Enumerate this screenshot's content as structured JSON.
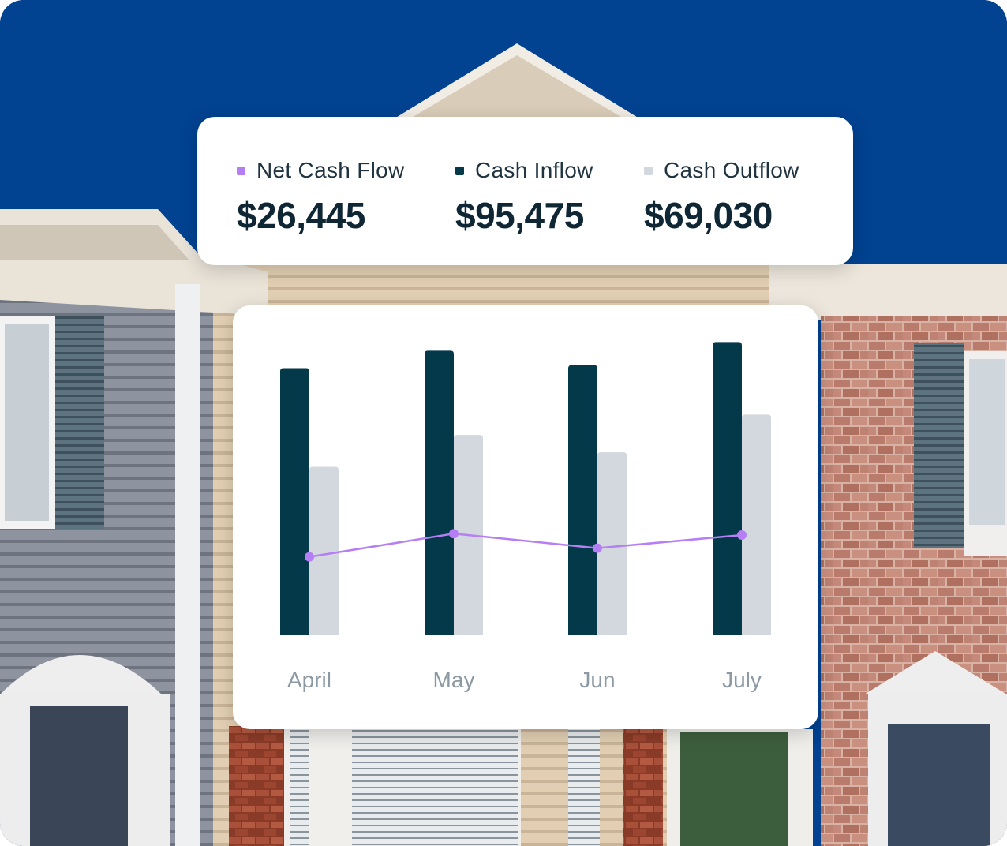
{
  "summary": {
    "net": {
      "label": "Net Cash Flow",
      "value": "$26,445",
      "color": "#b57ef5"
    },
    "inflow": {
      "label": "Cash Inflow",
      "value": "$95,475",
      "color": "#04394a"
    },
    "outflow": {
      "label": "Cash Outflow",
      "value": "$69,030",
      "color": "#d3d8de"
    }
  },
  "chart_data": {
    "type": "bar",
    "categories": [
      "April",
      "May",
      "Jun",
      "July"
    ],
    "ylim": [
      0,
      100
    ],
    "grid": false,
    "series": [
      {
        "name": "Cash Inflow",
        "type": "bar",
        "color": "#04394a",
        "values": [
          92,
          98,
          93,
          101
        ]
      },
      {
        "name": "Cash Outflow",
        "type": "bar",
        "color": "#d3d8de",
        "values": [
          58,
          69,
          63,
          76
        ]
      },
      {
        "name": "Net Cash Flow",
        "type": "line",
        "color": "#b57ef5",
        "values": [
          27,
          35,
          30,
          34.5
        ]
      }
    ]
  }
}
